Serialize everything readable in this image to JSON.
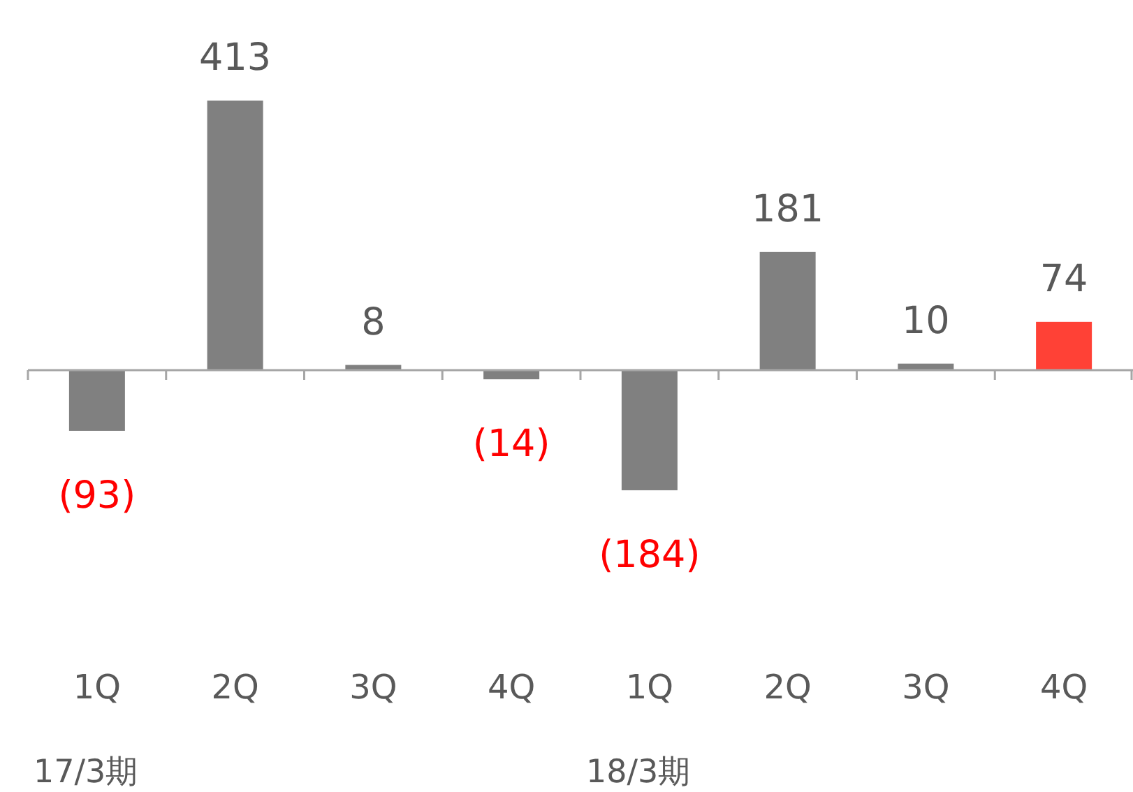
{
  "chart_data": {
    "type": "bar",
    "categories": [
      "1Q",
      "2Q",
      "3Q",
      "4Q",
      "1Q",
      "2Q",
      "3Q",
      "4Q"
    ],
    "values": [
      -93,
      413,
      8,
      -14,
      -184,
      181,
      10,
      74
    ],
    "colors": [
      "#808080",
      "#808080",
      "#808080",
      "#808080",
      "#808080",
      "#808080",
      "#808080",
      "#ff4136"
    ],
    "value_labels": [
      "(93)",
      "413",
      "8",
      "(14)",
      "(184)",
      "181",
      "10",
      "74"
    ],
    "annotations": [
      "17/3期",
      "18/3期"
    ]
  }
}
